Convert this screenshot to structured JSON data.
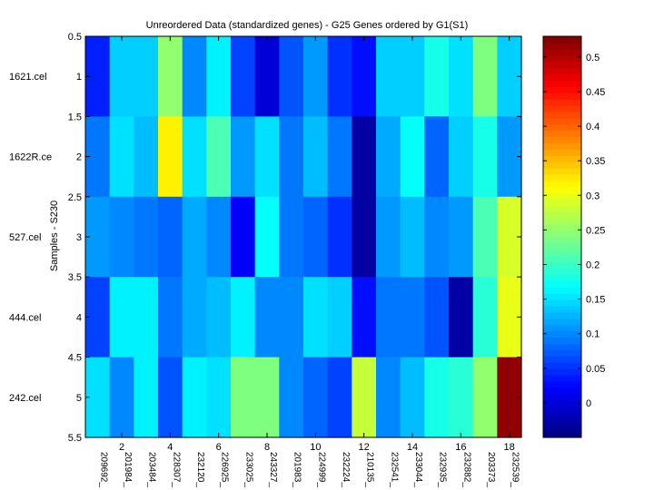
{
  "chart_data": {
    "type": "heatmap",
    "title": "Unreordered Data (standardized genes) - G25 Genes ordered by G1(S1)",
    "ylabel": "Samples - S230",
    "xlabel": "",
    "rows": [
      "1621.cel",
      "1622R.ce",
      "527.cel",
      "444.cel",
      "242.cel"
    ],
    "columns": [
      "209692_",
      "201984_",
      "203484_",
      "228307_",
      "232120_",
      "226925_",
      "233025_",
      "243327_",
      "201983_",
      "224999_",
      "232224_",
      "210135_",
      "232541_",
      "233044_",
      "232935_",
      "232882_",
      "203373_",
      "232539_"
    ],
    "values": [
      [
        0.04,
        0.14,
        0.14,
        0.25,
        0.1,
        0.16,
        0.06,
        0.0,
        0.07,
        0.11,
        0.05,
        0.03,
        0.14,
        0.14,
        0.18,
        0.15,
        0.24,
        0.14
      ],
      [
        0.09,
        0.15,
        0.13,
        0.32,
        0.15,
        0.21,
        0.11,
        0.15,
        0.09,
        0.13,
        0.09,
        -0.03,
        0.12,
        0.17,
        0.08,
        0.14,
        0.18,
        0.11
      ],
      [
        0.11,
        0.1,
        0.09,
        0.08,
        0.12,
        0.1,
        0.02,
        0.17,
        0.09,
        0.08,
        0.05,
        -0.03,
        0.11,
        0.13,
        0.1,
        0.11,
        0.21,
        0.29
      ],
      [
        0.06,
        0.16,
        0.16,
        0.09,
        0.12,
        0.13,
        0.16,
        0.1,
        0.1,
        0.15,
        0.14,
        0.03,
        0.09,
        0.09,
        0.07,
        -0.03,
        0.19,
        0.3
      ],
      [
        0.15,
        0.1,
        0.16,
        0.07,
        0.16,
        0.15,
        0.24,
        0.24,
        0.1,
        0.08,
        0.06,
        0.28,
        0.1,
        0.13,
        0.18,
        0.19,
        0.25,
        0.52
      ]
    ],
    "xticks": [
      "2",
      "4",
      "6",
      "8",
      "10",
      "12",
      "14",
      "16",
      "18"
    ],
    "yticks": [
      "0.5",
      "1",
      "1.5",
      "2",
      "2.5",
      "3",
      "3.5",
      "4",
      "4.5",
      "5",
      "5.5"
    ],
    "colorbar": {
      "min": -0.05,
      "max": 0.53,
      "ticks": [
        "0",
        "0.05",
        "0.1",
        "0.15",
        "0.2",
        "0.25",
        "0.3",
        "0.35",
        "0.4",
        "0.45",
        "0.5"
      ],
      "colormap": "jet"
    }
  }
}
